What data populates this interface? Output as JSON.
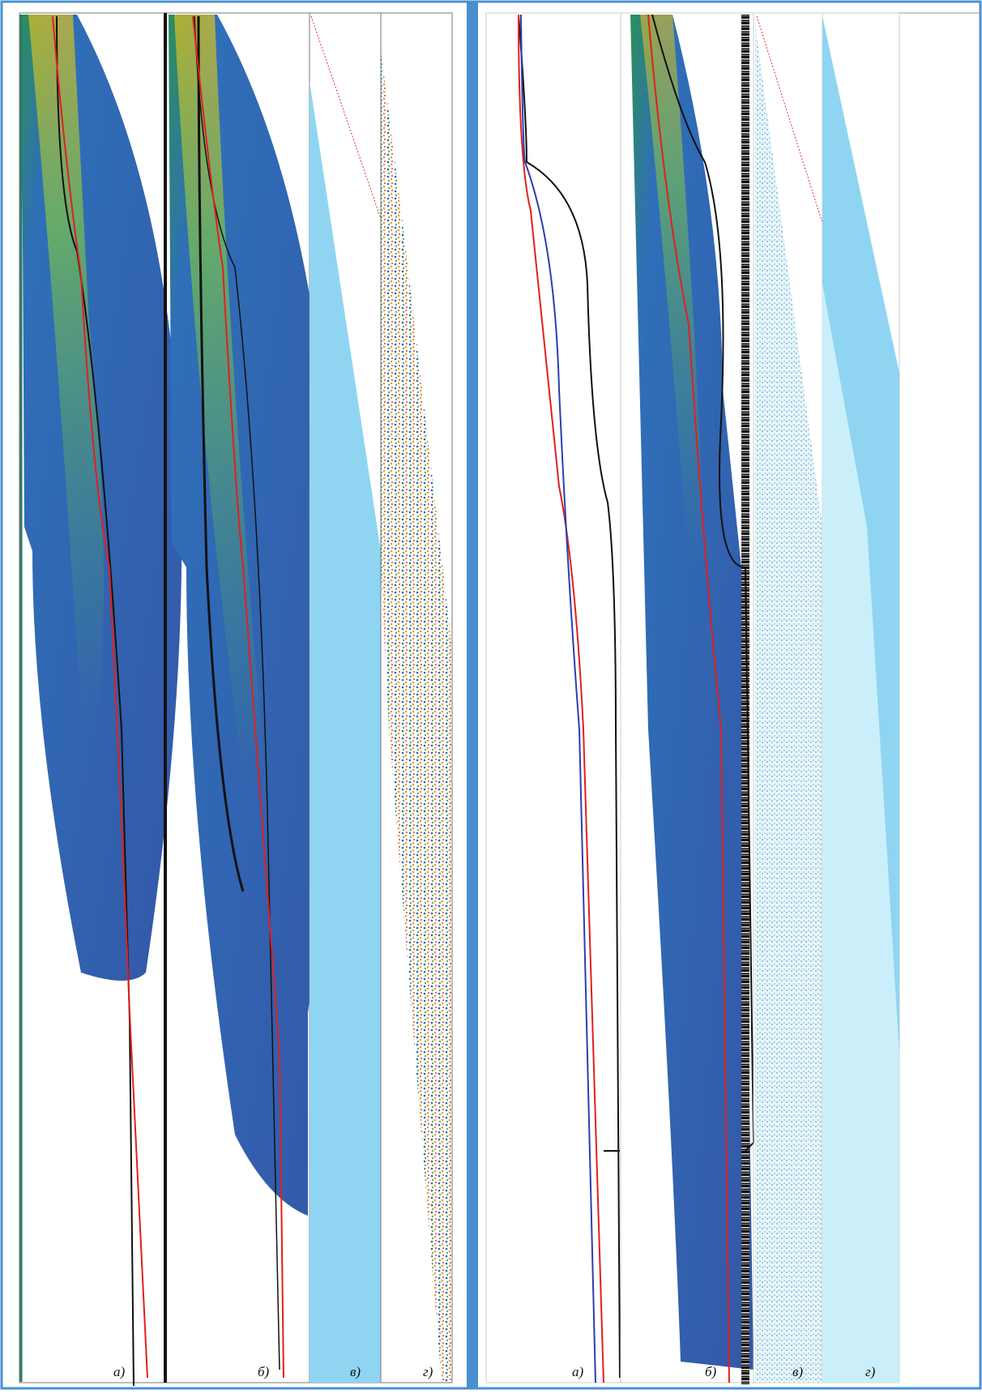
{
  "left": {
    "labels": [
      "а)",
      "б)",
      "в)",
      "г)"
    ]
  },
  "right": {
    "labels": [
      "а)",
      "б)",
      "в)",
      "г)"
    ]
  }
}
